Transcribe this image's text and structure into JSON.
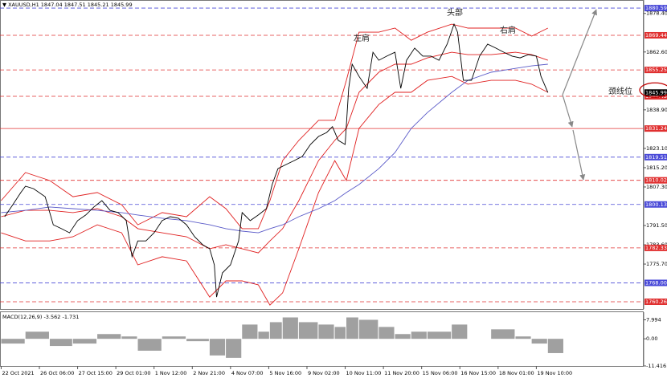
{
  "chart_data": [
    {
      "type": "line",
      "title": "XAUUSD,H1",
      "ohlc": [
        1847.04,
        1847.51,
        1845.21,
        1845.99
      ],
      "xlim": [
        -1,
        554
      ],
      "xticks": [
        {
          "value": 0,
          "label": "22 Oct 2021"
        },
        {
          "value": 33,
          "label": "26 Oct 06:00"
        },
        {
          "value": 66,
          "label": "27 Oct 15:00"
        },
        {
          "value": 99,
          "label": "29 Oct 01:00"
        },
        {
          "value": 132,
          "label": "1 Nov 12:00"
        },
        {
          "value": 165,
          "label": "2 Nov 21:00"
        },
        {
          "value": 198,
          "label": "4 Nov 07:00"
        },
        {
          "value": 231,
          "label": "5 Nov 16:00"
        },
        {
          "value": 264,
          "label": "9 Nov 02:00"
        },
        {
          "value": 297,
          "label": "10 Nov 11:00"
        },
        {
          "value": 330,
          "label": "11 Nov 20:00"
        },
        {
          "value": 363,
          "label": "15 Nov 06:00"
        },
        {
          "value": 396,
          "label": "16 Nov 15:00"
        },
        {
          "value": 429,
          "label": "18 Nov 01:00"
        },
        {
          "value": 462,
          "label": "19 Nov 10:00"
        }
      ],
      "ylim": [
        1757.3,
        1883.9
      ],
      "yticks": [
        {
          "value": 1878.4,
          "label": "1878.40"
        },
        {
          "value": 1862.6,
          "label": "1862.60"
        },
        {
          "value": 1838.9,
          "label": "1838.90"
        },
        {
          "value": 1823.1,
          "label": "1823.10"
        },
        {
          "value": 1815.2,
          "label": "1815.20"
        },
        {
          "value": 1807.3,
          "label": "1807.30"
        },
        {
          "value": 1791.5,
          "label": "1791.50"
        },
        {
          "value": 1783.6,
          "label": "1783.60"
        },
        {
          "value": 1775.7,
          "label": "1775.70"
        }
      ],
      "last": 1845.99,
      "levels": [
        {
          "value": 1880.59,
          "color": "#4a4ad8",
          "dash": true
        },
        {
          "value": 1869.44,
          "color": "#e03030",
          "dash": true
        },
        {
          "value": 1855.25,
          "color": "#e03030",
          "dash": true
        },
        {
          "value": 1844.43,
          "color": "#e03030",
          "dash": true
        },
        {
          "value": 1831.24,
          "color": "#e03030",
          "dash": false
        },
        {
          "value": 1819.51,
          "color": "#4a4ad8",
          "dash": true
        },
        {
          "value": 1810.02,
          "color": "#e03030",
          "dash": true
        },
        {
          "value": 1800.13,
          "color": "#4a4ad8",
          "dash": true
        },
        {
          "value": 1782.33,
          "color": "#e03030",
          "dash": true
        },
        {
          "value": 1768,
          "label": "1768.00",
          "color": "#4a4ad8",
          "dash": true
        },
        {
          "value": 1760.26,
          "color": "#e03030",
          "dash": true
        }
      ],
      "series": [
        {
          "color": "#e02020",
          "x": [
            0,
            21,
            42,
            62,
            83,
            104,
            118,
            139,
            160,
            180,
            194,
            208,
            222,
            232,
            243,
            257,
            274,
            288,
            298,
            309,
            326,
            340,
            354,
            368,
            389,
            403,
            423,
            444,
            458,
            472
          ],
          "values": [
            1801.7,
            1813.2,
            1809.9,
            1803.3,
            1805.0,
            1800.0,
            1791.8,
            1796.8,
            1795.1,
            1803.3,
            1798.4,
            1790.2,
            1790.2,
            1801.7,
            1818.1,
            1826.4,
            1834.6,
            1834.6,
            1851.0,
            1870.7,
            1870.7,
            1872.4,
            1867.4,
            1870.7,
            1874.0,
            1872.4,
            1872.4,
            1872.4,
            1869.1,
            1872.4
          ]
        },
        {
          "color": "#e02020",
          "x": [
            0,
            21,
            42,
            62,
            83,
            104,
            118,
            139,
            160,
            180,
            194,
            208,
            222,
            232,
            243,
            257,
            274,
            288,
            298,
            309,
            326,
            340,
            354,
            368,
            389,
            403,
            423,
            444,
            458,
            472
          ],
          "values": [
            1795.1,
            1797.7,
            1797.7,
            1796.8,
            1798.4,
            1795.1,
            1790.2,
            1788.5,
            1786.9,
            1782.0,
            1783.6,
            1782.0,
            1780.3,
            1785.2,
            1790.2,
            1801.7,
            1818.1,
            1826.4,
            1831.3,
            1846.1,
            1854.3,
            1857.6,
            1857.6,
            1860.2,
            1862.5,
            1861.5,
            1861.5,
            1862.5,
            1861.5,
            1859.2
          ]
        },
        {
          "color": "#e02020",
          "x": [
            0,
            21,
            42,
            62,
            83,
            104,
            118,
            139,
            160,
            180,
            194,
            208,
            222,
            232,
            243,
            257,
            274,
            288,
            298,
            309,
            326,
            340,
            354,
            368,
            389,
            403,
            423,
            444,
            458,
            472
          ],
          "values": [
            1788.5,
            1785.2,
            1785.2,
            1786.9,
            1791.8,
            1788.5,
            1775.4,
            1778.7,
            1777.0,
            1762.2,
            1768.8,
            1768.8,
            1767.2,
            1758.9,
            1763.9,
            1782.0,
            1805.0,
            1818.1,
            1809.9,
            1831.3,
            1841.1,
            1846.1,
            1846.1,
            1851.0,
            1852.6,
            1849.4,
            1851.0,
            1851.0,
            1849.4,
            1846.1
          ]
        },
        {
          "color": "#5a5ac8",
          "x": [
            0,
            21,
            42,
            62,
            83,
            104,
            118,
            139,
            160,
            180,
            194,
            208,
            222,
            232,
            243,
            257,
            274,
            288,
            298,
            309,
            326,
            340,
            354,
            368,
            389,
            403,
            423,
            444,
            458,
            472
          ],
          "values": [
            1796.8,
            1797.7,
            1799.1,
            1798.4,
            1797.7,
            1796.8,
            1795.8,
            1794.5,
            1793.5,
            1791.8,
            1790.2,
            1789.2,
            1788.5,
            1790.2,
            1791.8,
            1795.1,
            1798.4,
            1801.7,
            1805.0,
            1808.3,
            1814.8,
            1821.4,
            1831.3,
            1837.8,
            1846.1,
            1851.0,
            1854.3,
            1855.9,
            1856.9,
            1857.6
          ]
        },
        {
          "color": "#000000",
          "x": [
            3,
            10,
            17,
            21,
            28,
            38,
            45,
            52,
            59,
            66,
            73,
            80,
            87,
            94,
            101,
            108,
            113,
            118,
            125,
            132,
            139,
            146,
            153,
            160,
            167,
            174,
            180,
            184,
            186,
            191,
            198,
            205,
            208,
            215,
            222,
            229,
            234,
            239,
            246,
            253,
            260,
            267,
            274,
            281,
            286,
            291,
            297,
            300,
            303,
            309,
            316,
            321,
            326,
            333,
            340,
            345,
            350,
            357,
            364,
            371,
            378,
            385,
            391,
            394,
            399,
            406,
            413,
            420,
            427,
            434,
            441,
            448,
            455,
            462,
            466,
            472
          ],
          "values": [
            1795.1,
            1800.0,
            1805.0,
            1807.6,
            1806.6,
            1803.3,
            1791.8,
            1790.2,
            1788.5,
            1793.5,
            1795.8,
            1799.1,
            1801.7,
            1797.7,
            1796.8,
            1793.5,
            1778.7,
            1785.2,
            1785.2,
            1788.5,
            1793.5,
            1795.1,
            1794.5,
            1791.8,
            1786.9,
            1783.6,
            1782.0,
            1775.4,
            1762.2,
            1772.1,
            1775.4,
            1785.2,
            1796.8,
            1793.5,
            1795.8,
            1798.4,
            1808.3,
            1814.8,
            1816.5,
            1818.1,
            1819.8,
            1824.7,
            1828.0,
            1829.6,
            1832.0,
            1826.4,
            1824.7,
            1847.7,
            1857.6,
            1852.6,
            1847.7,
            1862.5,
            1859.2,
            1860.9,
            1862.5,
            1847.7,
            1859.2,
            1864.2,
            1860.9,
            1860.9,
            1859.2,
            1865.8,
            1874.0,
            1870.7,
            1851.0,
            1851.0,
            1860.9,
            1865.8,
            1864.2,
            1862.5,
            1860.9,
            1860.2,
            1861.5,
            1860.9,
            1852.6,
            1845.99
          ]
        }
      ],
      "annotations": [
        "左肩",
        "头部",
        "右肩",
        "颈线位"
      ]
    },
    {
      "type": "bar",
      "title": "MACD(12,26,9)",
      "readings": [
        -3.562,
        -1.731
      ],
      "xlim": [
        -1,
        554
      ],
      "x": [
        0,
        21,
        42,
        62,
        83,
        104,
        118,
        139,
        160,
        180,
        194,
        208,
        222,
        232,
        243,
        257,
        274,
        288,
        298,
        309,
        326,
        340,
        354,
        368,
        389,
        403,
        423,
        444,
        458,
        472
      ],
      "values": [
        -2,
        3,
        -3,
        -2,
        2,
        1,
        -5,
        1,
        -1,
        -7,
        -8,
        6,
        3,
        7,
        9,
        7,
        6,
        5,
        9,
        8,
        5,
        2,
        3,
        3,
        6,
        0,
        4,
        1,
        -2,
        -6
      ],
      "color": "#a0a0a0",
      "ylim": [
        -11.416,
        11.2
      ],
      "yticks": [
        7.994,
        {
          "value": 0,
          "label": "0.00"
        },
        -11.416
      ]
    }
  ]
}
